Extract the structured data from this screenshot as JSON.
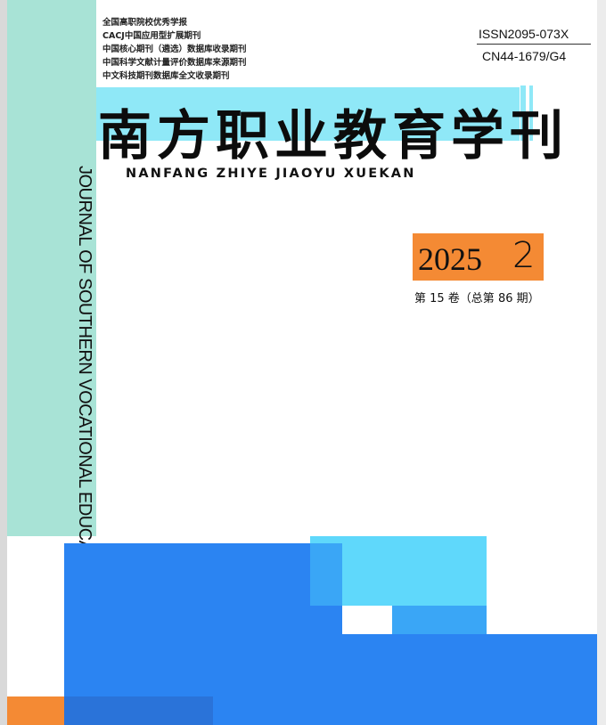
{
  "indexing": [
    "全国高职院校优秀学报",
    "CACJ中国应用型扩展期刊",
    "中国核心期刊（遴选）数据库收录期刊",
    "中国科学文献计量评价数据库来源期刊",
    "中文科技期刊数据库全文收录期刊"
  ],
  "issn": "ISSN2095-073X",
  "cn": "CN44-1679/G4",
  "title_cn": "南方职业教育学刊",
  "title_pinyin": "NANFANG ZHIYE JIAOYU XUEKAN",
  "title_en": "JOURNAL OF SOUTHERN VOCATIONAL EDUCATION",
  "year": "2025",
  "issue_number": "2",
  "volume": "第 15 卷（总第 86 期）",
  "colors": {
    "mint": "#a8e3d6",
    "cyan": "#8fe8f7",
    "orange": "#f48a34",
    "blue": "#2b84f2",
    "light_cyan": "#5fd8fb"
  }
}
